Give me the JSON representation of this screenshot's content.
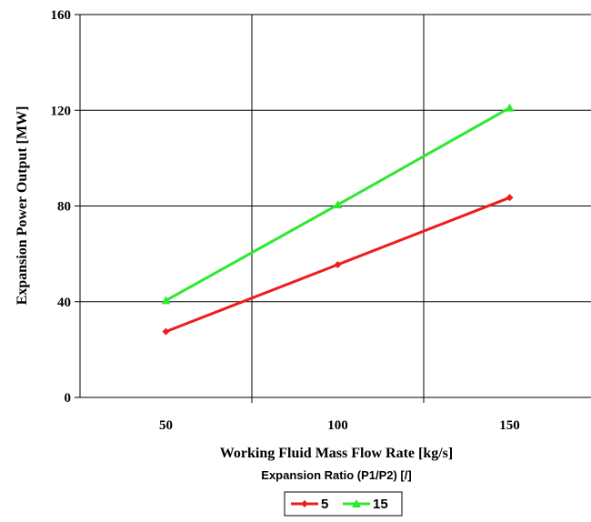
{
  "chart_data": {
    "type": "line",
    "title": "",
    "xlabel": "Working Fluid Mass Flow Rate [kg/s]",
    "ylabel": "Expansion Power Output [MW]",
    "legend_title": "Expansion Ratio (P1/P2) [/]",
    "legend_position": "bottom",
    "grid": true,
    "xlim": [
      25,
      175
    ],
    "ylim": [
      0,
      160
    ],
    "x_ticks": [
      50,
      100,
      150
    ],
    "y_ticks": [
      0,
      40,
      80,
      120,
      160
    ],
    "series": [
      {
        "name": "5",
        "color": "#ee1c1c",
        "marker": "diamond",
        "x": [
          50,
          100,
          150
        ],
        "y": [
          27.5,
          55.5,
          83.5
        ]
      },
      {
        "name": "15",
        "color": "#2ee82e",
        "marker": "triangle",
        "x": [
          50,
          100,
          150
        ],
        "y": [
          40.5,
          80.5,
          121
        ]
      }
    ]
  }
}
